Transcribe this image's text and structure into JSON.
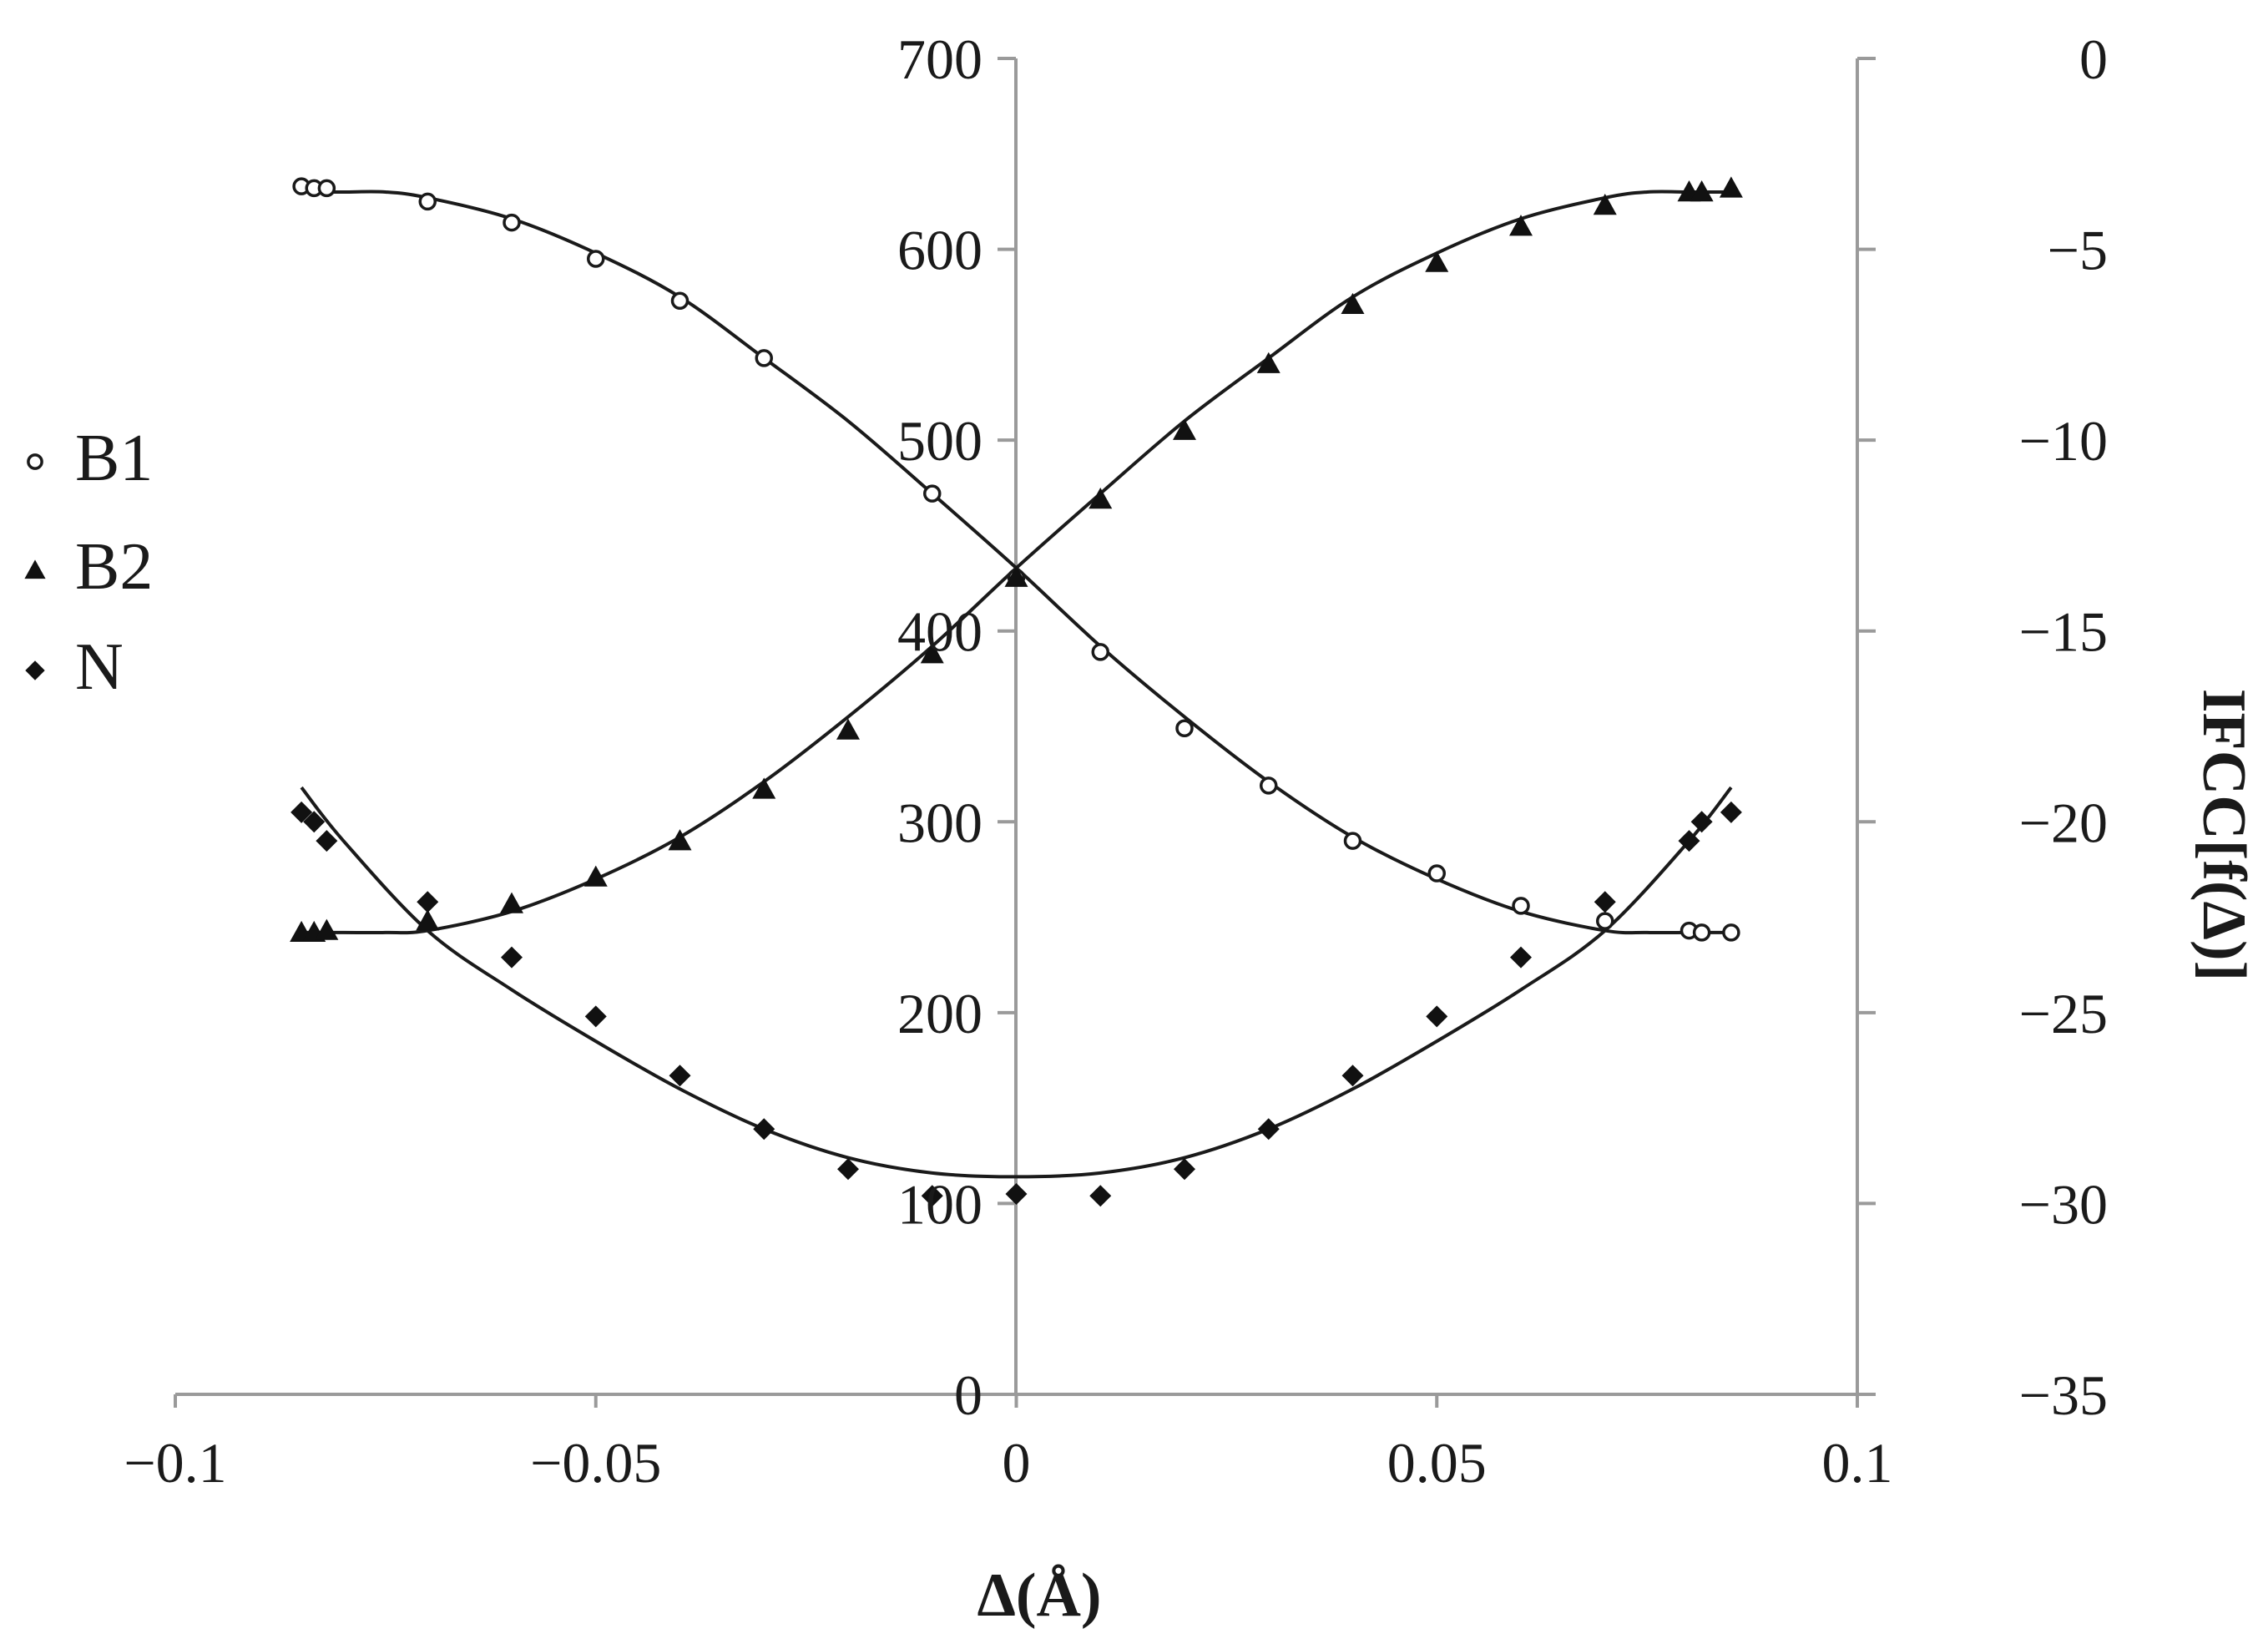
{
  "chart_data": {
    "type": "scatter",
    "title": "",
    "xlabel": "Δ(Å)",
    "ylabel": "",
    "y2label": "IFCC[f(Δ)]",
    "xlim": [
      -0.1,
      0.1
    ],
    "ylim": [
      0,
      700
    ],
    "y2lim": [
      -35,
      0
    ],
    "x_ticks": [
      -0.1,
      -0.05,
      0,
      0.05,
      0.1
    ],
    "x_tick_labels": [
      "−0.1",
      "−0.05",
      "0",
      "0.05",
      "0.1"
    ],
    "y_ticks": [
      0,
      100,
      200,
      300,
      400,
      500,
      600,
      700
    ],
    "y_tick_labels": [
      "0",
      "100",
      "200",
      "300",
      "400",
      "500",
      "600",
      "700"
    ],
    "y2_ticks": [
      0,
      -5,
      -10,
      -15,
      -20,
      -25,
      -30,
      -35
    ],
    "y2_tick_labels": [
      "0",
      "−5",
      "−10",
      "−15",
      "−20",
      "−25",
      "−30",
      "−35"
    ],
    "legend_position": "left",
    "series": [
      {
        "name": "B1",
        "marker": "open-circle",
        "x": [
          -0.085,
          -0.0835,
          -0.082,
          -0.07,
          -0.06,
          -0.05,
          -0.04,
          -0.03,
          -0.01,
          0,
          0.01,
          0.02,
          0.03,
          0.04,
          0.05,
          0.06,
          0.07,
          0.08,
          0.0815,
          0.085
        ],
        "y": [
          633,
          632,
          632,
          625,
          614,
          595,
          573,
          543,
          472,
          428,
          389,
          349,
          319,
          290,
          273,
          256,
          248,
          243,
          242,
          242
        ]
      },
      {
        "name": "B2",
        "marker": "filled-triangle",
        "x": [
          -0.085,
          -0.0835,
          -0.082,
          -0.07,
          -0.06,
          -0.05,
          -0.04,
          -0.03,
          -0.02,
          -0.01,
          0,
          0.01,
          0.02,
          0.03,
          0.04,
          0.05,
          0.06,
          0.07,
          0.08,
          0.0815,
          0.085
        ],
        "y": [
          242,
          242,
          243,
          248,
          257,
          271,
          290,
          317,
          348,
          388,
          428,
          469,
          505,
          540,
          571,
          593,
          612,
          623,
          630,
          630,
          632
        ]
      },
      {
        "name": "N",
        "marker": "filled-diamond",
        "x": [
          -0.085,
          -0.0835,
          -0.082,
          -0.07,
          -0.06,
          -0.05,
          -0.04,
          -0.03,
          -0.02,
          -0.01,
          0,
          0.01,
          0.02,
          0.03,
          0.04,
          0.05,
          0.06,
          0.07,
          0.08,
          0.0815,
          0.085
        ],
        "y": [
          305,
          300,
          290,
          258,
          229,
          198,
          167,
          139,
          118,
          104,
          105,
          104,
          118,
          139,
          167,
          198,
          229,
          258,
          290,
          300,
          305
        ]
      }
    ],
    "fit_curves": [
      {
        "name": "B1 fit",
        "x": [
          -0.085,
          -0.08,
          -0.075,
          -0.07,
          -0.06,
          -0.05,
          -0.04,
          -0.03,
          -0.02,
          -0.01,
          0,
          0.01,
          0.02,
          0.03,
          0.04,
          0.05,
          0.06,
          0.07,
          0.075,
          0.08,
          0.085
        ],
        "y": [
          630,
          630,
          630,
          627,
          616,
          598,
          575,
          543,
          510,
          472,
          433,
          392,
          355,
          321,
          292,
          270,
          253,
          243,
          242,
          242,
          242
        ]
      },
      {
        "name": "B2 fit",
        "x": [
          -0.085,
          -0.08,
          -0.075,
          -0.07,
          -0.06,
          -0.05,
          -0.04,
          -0.03,
          -0.02,
          -0.01,
          0,
          0.01,
          0.02,
          0.03,
          0.04,
          0.05,
          0.06,
          0.07,
          0.075,
          0.08,
          0.085
        ],
        "y": [
          242,
          242,
          242,
          243,
          253,
          270,
          292,
          321,
          355,
          392,
          433,
          472,
          510,
          543,
          575,
          598,
          616,
          627,
          630,
          630,
          630
        ]
      },
      {
        "name": "N fit",
        "x": [
          -0.085,
          -0.08,
          -0.07,
          -0.06,
          -0.05,
          -0.04,
          -0.03,
          -0.02,
          -0.01,
          0,
          0.01,
          0.02,
          0.03,
          0.04,
          0.05,
          0.06,
          0.07,
          0.08,
          0.085
        ],
        "y": [
          318,
          290,
          243,
          212,
          185,
          160,
          139,
          124,
          116,
          114,
          116,
          124,
          139,
          160,
          185,
          212,
          243,
          290,
          318
        ]
      }
    ]
  }
}
